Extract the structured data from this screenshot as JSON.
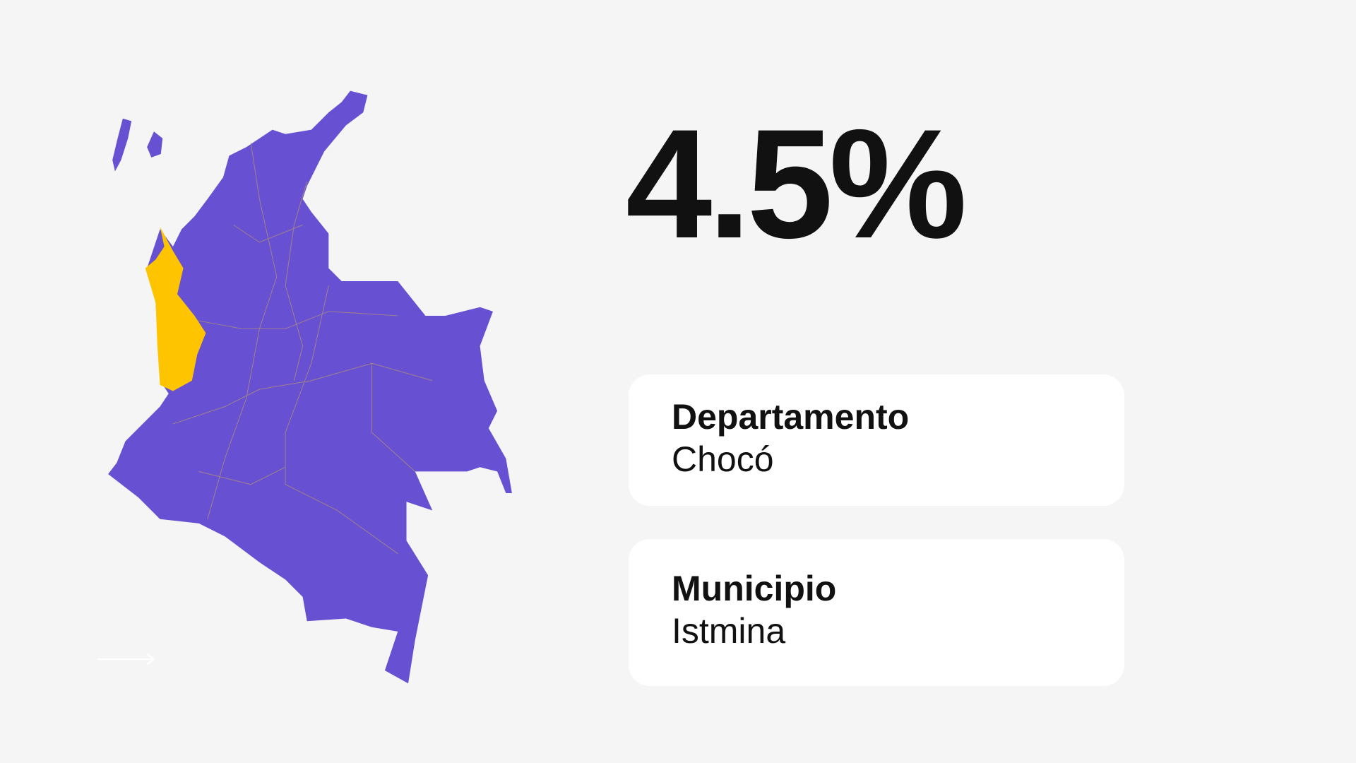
{
  "stat": {
    "value": "4.5%"
  },
  "cards": [
    {
      "label": "Departamento",
      "value": "Chocó"
    },
    {
      "label": "Municipio",
      "value": "Istmina"
    }
  ]
}
